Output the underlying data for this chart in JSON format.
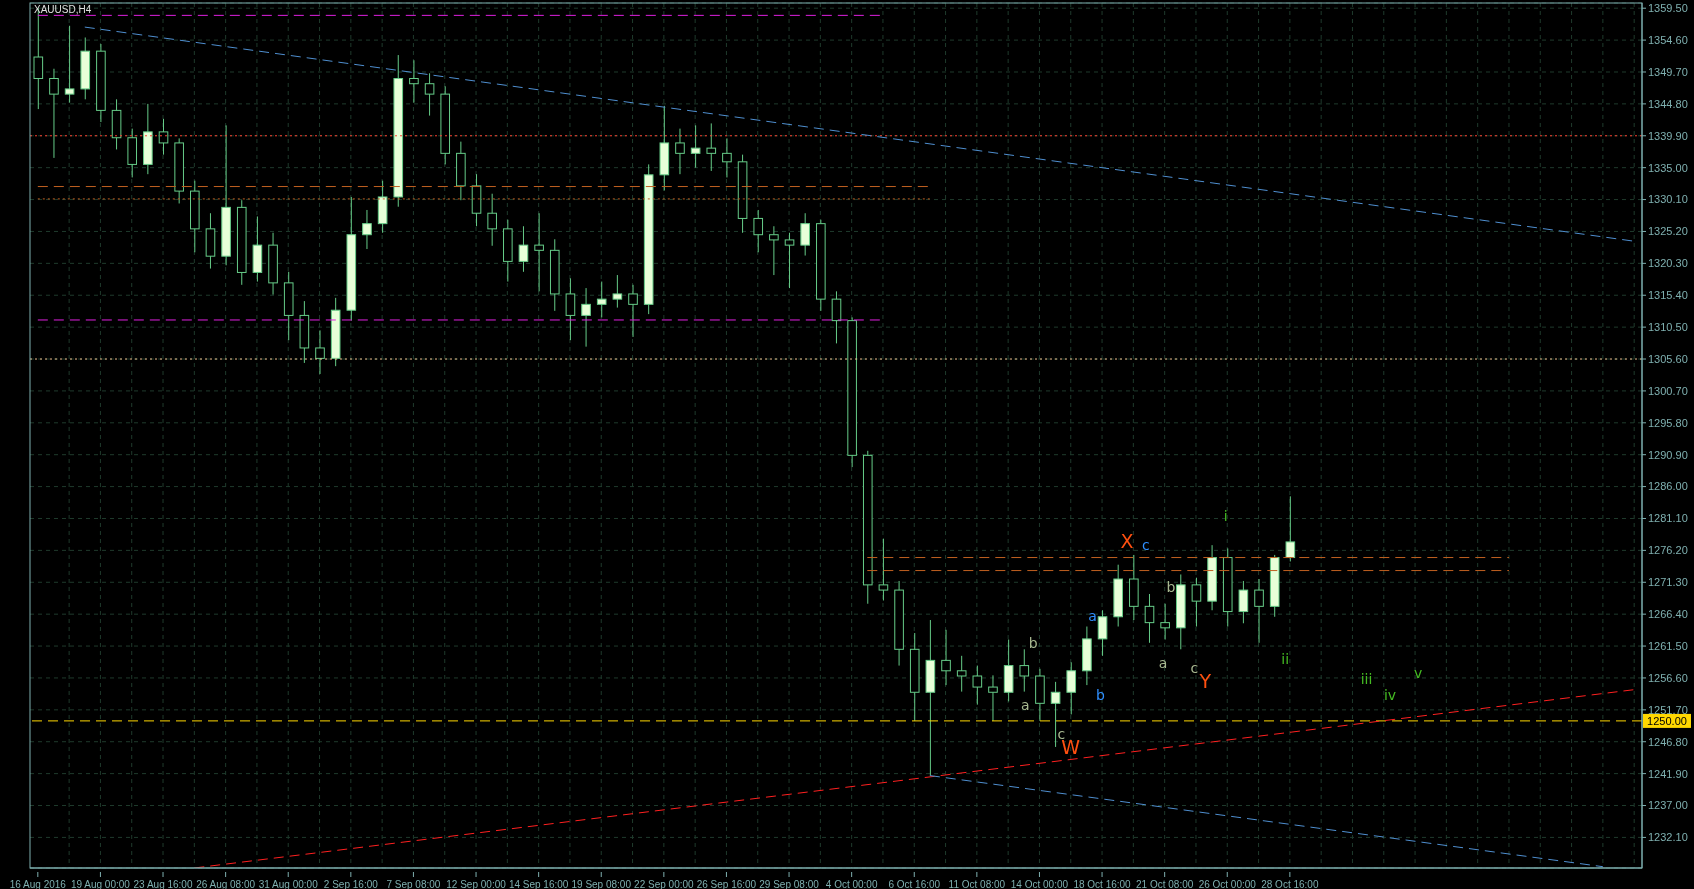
{
  "chart_data": {
    "type": "candlestick",
    "title": "XAUUSD,H4",
    "categories": [
      "16 Aug 2016",
      null,
      null,
      null,
      "19 Aug 00:00",
      null,
      null,
      null,
      "23 Aug 16:00",
      null,
      null,
      null,
      "26 Aug 08:00",
      null,
      null,
      null,
      "31 Aug 00:00",
      null,
      null,
      null,
      "2 Sep 16:00",
      null,
      null,
      null,
      "7 Sep 08:00",
      null,
      null,
      null,
      "12 Sep 00:00",
      null,
      null,
      null,
      "14 Sep 16:00",
      null,
      null,
      null,
      "19 Sep 08:00",
      null,
      null,
      null,
      "22 Sep 00:00",
      null,
      null,
      null,
      "26 Sep 16:00",
      null,
      null,
      null,
      "29 Sep 08:00",
      null,
      null,
      null,
      "4 Oct 00:00",
      null,
      null,
      null,
      "6 Oct 16:00",
      null,
      null,
      null,
      "11 Oct 08:00",
      null,
      null,
      null,
      "14 Oct 00:00",
      null,
      null,
      null,
      "18 Oct 16:00",
      null,
      null,
      null,
      "21 Oct 08:00",
      null,
      null,
      null,
      "26 Oct 00:00",
      null,
      null,
      null,
      "28 Oct 16:00",
      null,
      null,
      null,
      null,
      null,
      null,
      null,
      null,
      null,
      null,
      null,
      null,
      null,
      null,
      null,
      null,
      null,
      null,
      null,
      null,
      null,
      null
    ],
    "color": "#66cc88",
    "ohlc": [
      [
        1352.0,
        1359.5,
        1344.0,
        1348.7
      ],
      [
        1348.7,
        1350.2,
        1336.5,
        1346.3
      ],
      [
        1346.3,
        1356.8,
        1345.0,
        1347.1
      ],
      [
        1347.1,
        1355.0,
        1345.5,
        1352.9
      ],
      [
        1352.9,
        1354.0,
        1342.0,
        1343.8
      ],
      [
        1343.8,
        1345.5,
        1337.8,
        1339.6
      ],
      [
        1339.6,
        1341.0,
        1333.5,
        1335.5
      ],
      [
        1335.5,
        1344.8,
        1334.0,
        1340.5
      ],
      [
        1340.5,
        1342.5,
        1337.0,
        1338.8
      ],
      [
        1338.8,
        1339.5,
        1329.5,
        1331.4
      ],
      [
        1331.4,
        1333.0,
        1322.0,
        1325.6
      ],
      [
        1325.6,
        1328.0,
        1319.5,
        1321.4
      ],
      [
        1321.4,
        1341.5,
        1320.0,
        1328.9
      ],
      [
        1328.9,
        1330.0,
        1317.0,
        1318.9
      ],
      [
        1318.9,
        1327.5,
        1317.5,
        1323.1
      ],
      [
        1323.1,
        1325.0,
        1315.5,
        1317.3
      ],
      [
        1317.3,
        1319.0,
        1308.5,
        1312.3
      ],
      [
        1312.3,
        1314.5,
        1305.0,
        1307.3
      ],
      [
        1307.3,
        1310.0,
        1303.3,
        1305.7
      ],
      [
        1305.7,
        1315.0,
        1304.5,
        1313.1
      ],
      [
        1313.1,
        1330.5,
        1311.5,
        1324.7
      ],
      [
        1324.7,
        1328.5,
        1322.5,
        1326.4
      ],
      [
        1326.4,
        1333.0,
        1325.0,
        1330.5
      ],
      [
        1330.5,
        1352.3,
        1329.0,
        1348.7
      ],
      [
        1348.7,
        1351.5,
        1345.0,
        1347.9
      ],
      [
        1347.9,
        1349.5,
        1343.0,
        1346.3
      ],
      [
        1346.3,
        1347.5,
        1335.5,
        1337.2
      ],
      [
        1337.2,
        1339.0,
        1330.0,
        1332.2
      ],
      [
        1332.2,
        1334.0,
        1326.0,
        1328.0
      ],
      [
        1328.0,
        1331.0,
        1323.0,
        1325.6
      ],
      [
        1325.6,
        1327.0,
        1317.5,
        1320.6
      ],
      [
        1320.6,
        1326.0,
        1319.0,
        1323.1
      ],
      [
        1323.1,
        1328.0,
        1316.0,
        1322.3
      ],
      [
        1322.3,
        1324.0,
        1313.0,
        1315.6
      ],
      [
        1315.6,
        1318.0,
        1308.5,
        1312.3
      ],
      [
        1312.3,
        1316.5,
        1307.5,
        1314.0
      ],
      [
        1314.0,
        1317.5,
        1312.0,
        1314.8
      ],
      [
        1314.8,
        1318.5,
        1313.5,
        1315.6
      ],
      [
        1315.6,
        1317.0,
        1309.0,
        1314.0
      ],
      [
        1314.0,
        1335.5,
        1312.5,
        1333.9
      ],
      [
        1333.9,
        1344.5,
        1331.5,
        1338.8
      ],
      [
        1338.8,
        1341.0,
        1334.0,
        1337.2
      ],
      [
        1337.2,
        1341.5,
        1335.0,
        1338.0
      ],
      [
        1338.0,
        1341.8,
        1334.5,
        1337.2
      ],
      [
        1337.2,
        1339.5,
        1333.5,
        1335.9
      ],
      [
        1335.9,
        1337.0,
        1325.0,
        1327.2
      ],
      [
        1327.2,
        1328.5,
        1322.0,
        1324.7
      ],
      [
        1324.7,
        1326.0,
        1318.5,
        1323.9
      ],
      [
        1323.9,
        1325.0,
        1316.5,
        1323.1
      ],
      [
        1323.1,
        1328.0,
        1321.5,
        1326.4
      ],
      [
        1326.4,
        1327.0,
        1313.0,
        1314.8
      ],
      [
        1314.8,
        1316.0,
        1308.0,
        1311.5
      ],
      [
        1311.5,
        1312.0,
        1289.0,
        1290.8
      ],
      [
        1290.8,
        1291.5,
        1268.0,
        1270.9
      ],
      [
        1270.9,
        1278.0,
        1268.5,
        1270.1
      ],
      [
        1270.1,
        1271.5,
        1258.5,
        1261.0
      ],
      [
        1261.0,
        1263.5,
        1250.0,
        1254.4
      ],
      [
        1254.4,
        1265.5,
        1241.6,
        1259.3
      ],
      [
        1259.3,
        1264.0,
        1255.5,
        1257.7
      ],
      [
        1257.7,
        1260.0,
        1254.5,
        1256.9
      ],
      [
        1256.9,
        1258.5,
        1252.5,
        1255.2
      ],
      [
        1255.2,
        1257.0,
        1250.0,
        1254.4
      ],
      [
        1254.4,
        1262.5,
        1253.0,
        1258.5
      ],
      [
        1258.5,
        1261.0,
        1254.5,
        1256.9
      ],
      [
        1256.9,
        1258.0,
        1250.0,
        1252.7
      ],
      [
        1252.7,
        1256.0,
        1246.0,
        1254.4
      ],
      [
        1254.4,
        1259.0,
        1251.0,
        1257.7
      ],
      [
        1257.7,
        1264.5,
        1255.5,
        1262.6
      ],
      [
        1262.6,
        1267.0,
        1260.0,
        1266.0
      ],
      [
        1266.0,
        1274.0,
        1264.5,
        1271.8
      ],
      [
        1271.8,
        1275.5,
        1265.5,
        1267.6
      ],
      [
        1267.6,
        1269.5,
        1262.0,
        1265.1
      ],
      [
        1265.1,
        1268.0,
        1262.5,
        1264.3
      ],
      [
        1264.3,
        1272.5,
        1261.0,
        1270.9
      ],
      [
        1270.9,
        1272.0,
        1264.5,
        1268.4
      ],
      [
        1268.4,
        1277.0,
        1267.0,
        1275.1
      ],
      [
        1275.1,
        1276.5,
        1264.5,
        1266.8
      ],
      [
        1266.8,
        1271.5,
        1265.0,
        1270.1
      ],
      [
        1270.1,
        1271.8,
        1262.0,
        1267.6
      ],
      [
        1267.6,
        1275.5,
        1266.0,
        1275.1
      ],
      [
        1275.1,
        1284.5,
        1274.5,
        1277.5
      ],
      null,
      null,
      null,
      null,
      null,
      null,
      null,
      null,
      null,
      null,
      null,
      null,
      null,
      null,
      null,
      null,
      null,
      null,
      null,
      null,
      null,
      null
    ],
    "series": [
      {
        "type": "line",
        "color": "#4f8fd0",
        "line_style": "dashed",
        "values": [
          null,
          null,
          null,
          1356.6,
          null,
          null,
          null,
          null,
          null,
          null,
          null,
          null,
          null,
          null,
          null,
          null,
          null,
          null,
          null,
          null,
          null,
          null,
          null,
          null,
          null,
          null,
          null,
          null,
          null,
          null,
          null,
          null,
          null,
          null,
          null,
          null,
          null,
          null,
          null,
          null,
          null,
          null,
          null,
          null,
          null,
          null,
          null,
          null,
          null,
          null,
          null,
          null,
          null,
          null,
          null,
          null,
          null,
          null,
          null,
          null,
          null,
          null,
          null,
          null,
          null,
          null,
          null,
          null,
          null,
          null,
          null,
          null,
          null,
          null,
          null,
          null,
          null,
          null,
          null,
          null,
          null,
          null,
          null,
          null,
          null,
          null,
          null,
          null,
          null,
          null,
          null,
          null,
          null,
          null,
          null,
          null,
          null,
          null,
          null,
          null,
          null,
          null,
          1323.7
        ]
      },
      {
        "type": "line",
        "color": "#ff2020",
        "line_style": "dashed",
        "values": [
          null,
          null,
          null,
          null,
          null,
          null,
          null,
          null,
          null,
          null,
          1227.4,
          null,
          null,
          null,
          null,
          null,
          null,
          null,
          null,
          null,
          null,
          null,
          null,
          null,
          null,
          null,
          null,
          null,
          null,
          null,
          null,
          null,
          null,
          null,
          null,
          null,
          null,
          null,
          null,
          null,
          null,
          null,
          null,
          null,
          null,
          null,
          null,
          null,
          null,
          null,
          null,
          null,
          null,
          null,
          null,
          null,
          null,
          null,
          null,
          null,
          null,
          null,
          null,
          null,
          null,
          null,
          null,
          null,
          null,
          null,
          null,
          null,
          null,
          null,
          null,
          null,
          null,
          null,
          null,
          null,
          null,
          null,
          null,
          null,
          null,
          null,
          null,
          null,
          null,
          null,
          null,
          null,
          null,
          null,
          null,
          null,
          null,
          null,
          null,
          null,
          null,
          null,
          1254.8
        ]
      },
      {
        "type": "line",
        "color": "#4f8fd0",
        "line_style": "dashed",
        "values": [
          null,
          null,
          null,
          null,
          null,
          null,
          null,
          null,
          null,
          null,
          null,
          null,
          null,
          null,
          null,
          null,
          null,
          null,
          null,
          null,
          null,
          null,
          null,
          null,
          null,
          null,
          null,
          null,
          null,
          null,
          null,
          null,
          null,
          null,
          null,
          null,
          null,
          null,
          null,
          null,
          null,
          null,
          null,
          null,
          null,
          null,
          null,
          null,
          null,
          null,
          null,
          null,
          null,
          null,
          null,
          null,
          null,
          1241.6,
          null,
          null,
          null,
          null,
          null,
          null,
          null,
          null,
          null,
          null,
          null,
          null,
          null,
          null,
          null,
          null,
          null,
          null,
          null,
          null,
          null,
          null,
          null,
          null,
          null,
          null,
          null,
          null,
          null,
          null,
          null,
          null,
          null,
          null,
          null,
          null,
          null,
          null,
          null,
          null,
          null,
          null,
          1227.6,
          null,
          null
        ]
      },
      {
        "type": "line",
        "color": "#e020e0",
        "line_style": "dashed",
        "values": [
          1358.4,
          null,
          null,
          null,
          null,
          null,
          null,
          null,
          null,
          null,
          null,
          null,
          null,
          null,
          null,
          null,
          null,
          null,
          null,
          null,
          null,
          null,
          null,
          null,
          null,
          null,
          null,
          null,
          null,
          null,
          null,
          null,
          null,
          null,
          null,
          null,
          null,
          null,
          null,
          null,
          null,
          null,
          null,
          null,
          null,
          null,
          null,
          null,
          null,
          null,
          null,
          null,
          null,
          null,
          1358.4,
          null,
          null,
          null,
          null,
          null,
          null,
          null,
          null,
          null,
          null,
          null,
          null,
          null,
          null,
          null,
          null,
          null,
          null,
          null,
          null,
          null,
          null,
          null,
          null,
          null,
          null,
          null,
          null,
          null,
          null,
          null,
          null,
          null,
          null,
          null,
          null,
          null,
          null,
          null,
          null,
          null,
          null,
          null,
          null,
          null,
          null,
          null,
          null
        ]
      },
      {
        "type": "line",
        "color": "#e020e0",
        "line_style": "dashed",
        "values": [
          1311.6,
          null,
          null,
          null,
          null,
          null,
          null,
          null,
          null,
          null,
          null,
          null,
          null,
          null,
          null,
          null,
          null,
          null,
          null,
          null,
          null,
          null,
          null,
          null,
          null,
          null,
          null,
          null,
          null,
          null,
          null,
          null,
          null,
          null,
          null,
          null,
          null,
          null,
          null,
          null,
          null,
          null,
          null,
          null,
          null,
          null,
          null,
          null,
          null,
          null,
          null,
          null,
          null,
          null,
          1311.6,
          null,
          null,
          null,
          null,
          null,
          null,
          null,
          null,
          null,
          null,
          null,
          null,
          null,
          null,
          null,
          null,
          null,
          null,
          null,
          null,
          null,
          null,
          null,
          null,
          null,
          null,
          null,
          null,
          null,
          null,
          null,
          null,
          null,
          null,
          null,
          null,
          null,
          null,
          null,
          null,
          null,
          null,
          null,
          null,
          null,
          null,
          null,
          null
        ]
      },
      {
        "type": "line",
        "color": "#c06020",
        "line_style": "dashed",
        "values": [
          1332.1,
          null,
          null,
          null,
          null,
          null,
          null,
          null,
          null,
          null,
          null,
          null,
          null,
          null,
          null,
          null,
          null,
          null,
          null,
          null,
          null,
          null,
          null,
          null,
          null,
          null,
          null,
          null,
          null,
          null,
          null,
          null,
          null,
          null,
          null,
          null,
          null,
          null,
          null,
          null,
          null,
          null,
          null,
          null,
          null,
          null,
          null,
          null,
          null,
          null,
          null,
          null,
          null,
          null,
          null,
          null,
          null,
          1332.1,
          null,
          null,
          null,
          null,
          null,
          null,
          null,
          null,
          null,
          null,
          null,
          null,
          null,
          null,
          null,
          null,
          null,
          null,
          null,
          null,
          null,
          null,
          null,
          null,
          null,
          null,
          null,
          null,
          null,
          null,
          null,
          null,
          null,
          null,
          null,
          null,
          null,
          null,
          null,
          null,
          null,
          null,
          null,
          null,
          null
        ]
      },
      {
        "type": "line",
        "color": "#c06020",
        "line_style": "dotted",
        "values": [
          1330.2,
          null,
          null,
          null,
          null,
          null,
          null,
          null,
          null,
          null,
          null,
          null,
          null,
          null,
          null,
          null,
          null,
          null,
          null,
          null,
          null,
          null,
          null,
          null,
          null,
          null,
          null,
          null,
          null,
          null,
          null,
          null,
          null,
          null,
          null,
          null,
          null,
          null,
          null,
          null,
          null,
          null,
          null,
          null,
          null,
          null,
          null,
          null,
          null,
          null,
          null,
          null,
          null,
          null,
          null,
          null,
          null,
          1330.2,
          null,
          null,
          null,
          null,
          null,
          null,
          null,
          null,
          null,
          null,
          null,
          null,
          null,
          null,
          null,
          null,
          null,
          null,
          null,
          null,
          null,
          null,
          null,
          null,
          null,
          null,
          null,
          null,
          null,
          null,
          null,
          null,
          null,
          null,
          null,
          null,
          null,
          null,
          null,
          null,
          null,
          null,
          null,
          null,
          null
        ]
      },
      {
        "type": "line",
        "color": "#c06020",
        "line_style": "dashed",
        "values": [
          null,
          null,
          null,
          null,
          null,
          null,
          null,
          null,
          null,
          null,
          null,
          null,
          null,
          null,
          null,
          null,
          null,
          null,
          null,
          null,
          null,
          null,
          null,
          null,
          null,
          null,
          null,
          null,
          null,
          null,
          null,
          null,
          null,
          null,
          null,
          null,
          null,
          null,
          null,
          null,
          null,
          null,
          null,
          null,
          null,
          null,
          null,
          null,
          null,
          null,
          null,
          null,
          null,
          1275.1,
          null,
          null,
          null,
          null,
          null,
          null,
          null,
          null,
          null,
          null,
          null,
          null,
          null,
          null,
          null,
          null,
          null,
          null,
          null,
          null,
          null,
          null,
          null,
          null,
          null,
          null,
          null,
          null,
          null,
          null,
          null,
          null,
          null,
          null,
          null,
          null,
          null,
          null,
          null,
          null,
          1275.1,
          null,
          null,
          null,
          null,
          null,
          null,
          null,
          null
        ]
      },
      {
        "type": "line",
        "color": "#c06020",
        "line_style": "dashed",
        "values": [
          null,
          null,
          null,
          null,
          null,
          null,
          null,
          null,
          null,
          null,
          null,
          null,
          null,
          null,
          null,
          null,
          null,
          null,
          null,
          null,
          null,
          null,
          null,
          null,
          null,
          null,
          null,
          null,
          null,
          null,
          null,
          null,
          null,
          null,
          null,
          null,
          null,
          null,
          null,
          null,
          null,
          null,
          null,
          null,
          null,
          null,
          null,
          null,
          null,
          null,
          null,
          null,
          null,
          1273.1,
          null,
          null,
          null,
          null,
          null,
          null,
          null,
          null,
          null,
          null,
          null,
          null,
          null,
          null,
          null,
          null,
          null,
          null,
          null,
          null,
          null,
          null,
          null,
          null,
          null,
          null,
          null,
          null,
          null,
          null,
          null,
          null,
          null,
          null,
          null,
          null,
          null,
          null,
          null,
          null,
          1273.1,
          null,
          null,
          null,
          null,
          null,
          null,
          null,
          null
        ]
      }
    ],
    "ref_lines": [
      {
        "axis": "y",
        "value": 1339.9,
        "color": "#ff4030",
        "line_style": "dotted"
      },
      {
        "axis": "y",
        "value": 1305.6,
        "color": "#f0c090",
        "line_style": "dotted"
      },
      {
        "axis": "y",
        "value": 1250.0,
        "label": "1250.00",
        "color": "#ffd700",
        "line_style": "dashed"
      }
    ],
    "annotations": [
      "X",
      "c",
      "i",
      "a",
      "b",
      "b",
      "a",
      "c",
      "Y",
      "ii",
      "b",
      "a",
      "c",
      "W",
      "iii",
      "iv",
      "v"
    ],
    "ylim": [
      1227.4,
      1360.3
    ],
    "yticks": [
      {
        "value": 1359.5,
        "label": "1359.50"
      },
      {
        "value": 1354.6,
        "label": "1354.60"
      },
      {
        "value": 1349.7,
        "label": "1349.70"
      },
      {
        "value": 1344.8,
        "label": "1344.80"
      },
      {
        "value": 1339.9,
        "label": "1339.90"
      },
      {
        "value": 1335.0,
        "label": "1335.00"
      },
      {
        "value": 1330.1,
        "label": "1330.10"
      },
      {
        "value": 1325.2,
        "label": "1325.20"
      },
      {
        "value": 1320.3,
        "label": "1320.30"
      },
      {
        "value": 1315.4,
        "label": "1315.40"
      },
      {
        "value": 1310.5,
        "label": "1310.50"
      },
      {
        "value": 1305.6,
        "label": "1305.60"
      },
      {
        "value": 1300.7,
        "label": "1300.70"
      },
      {
        "value": 1295.8,
        "label": "1295.80"
      },
      {
        "value": 1290.9,
        "label": "1290.90"
      },
      {
        "value": 1286.0,
        "label": "1286.00"
      },
      {
        "value": 1281.1,
        "label": "1281.10"
      },
      {
        "value": 1276.2,
        "label": "1276.20"
      },
      {
        "value": 1271.3,
        "label": "1271.30"
      },
      {
        "value": 1266.4,
        "label": "1266.40"
      },
      {
        "value": 1261.5,
        "label": "1261.50"
      },
      {
        "value": 1256.6,
        "label": "1256.60"
      },
      {
        "value": 1251.7,
        "label": "1251.70"
      },
      {
        "value": 1246.8,
        "label": "1246.80"
      },
      {
        "value": 1241.9,
        "label": "1241.90"
      },
      {
        "value": 1237.0,
        "label": "1237.00"
      },
      {
        "value": 1232.1,
        "label": "1232.10"
      }
    ],
    "grid": true
  }
}
